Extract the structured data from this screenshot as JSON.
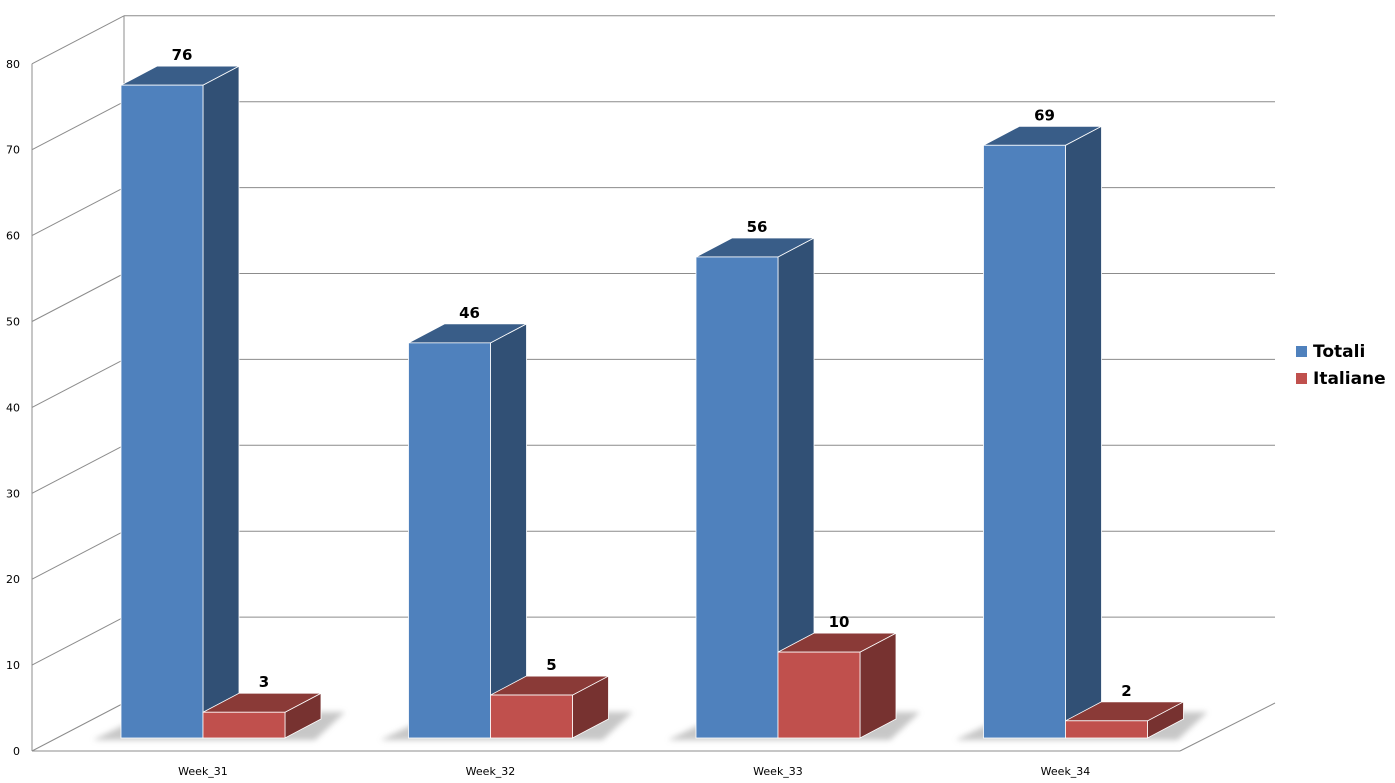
{
  "chart_data": {
    "type": "bar",
    "title": "",
    "xlabel": "",
    "ylabel": "",
    "categories": [
      "Week_31",
      "Week_32",
      "Week_33",
      "Week_34"
    ],
    "series": [
      {
        "name": "Totali",
        "values": [
          76,
          46,
          56,
          69
        ],
        "color": "#4F81BD"
      },
      {
        "name": "Italiane",
        "values": [
          3,
          5,
          10,
          2
        ],
        "color": "#C0504D"
      }
    ],
    "ylim": [
      0,
      80
    ],
    "yticks": [
      "0",
      "10",
      "20",
      "30",
      "40",
      "50",
      "60",
      "70",
      "80"
    ],
    "grid": true,
    "legend_position": "right",
    "style": "3d-column"
  }
}
